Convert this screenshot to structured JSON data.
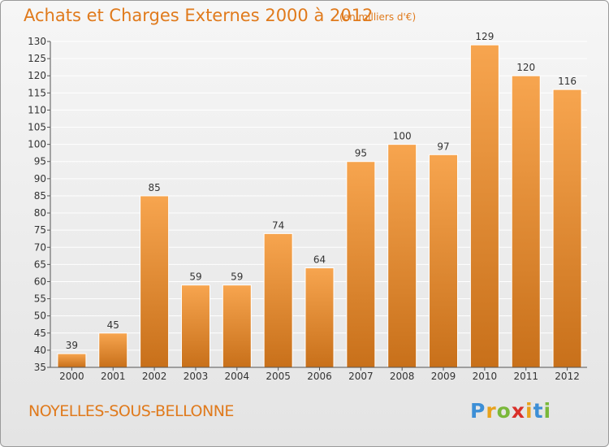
{
  "title": "Achats et Charges Externes 2000 à 2012",
  "subtitle": "(en milliers d'€)",
  "town": "NOYELLES-SOUS-BELLONNE",
  "logo": {
    "letters": [
      "P",
      "r",
      "o",
      "x",
      "i",
      "t",
      "i"
    ],
    "colors": [
      "#3d8fd6",
      "#e8a21c",
      "#7ab83a",
      "#d9302a",
      "#e8a21c",
      "#3d8fd6",
      "#7ab83a"
    ]
  },
  "colors": {
    "bar_top": "#f7a54f",
    "bar_bottom": "#c8701a",
    "accent": "#e07a1c",
    "grid": "#ffffff"
  },
  "chart_data": {
    "type": "bar",
    "categories": [
      "2000",
      "2001",
      "2002",
      "2003",
      "2004",
      "2005",
      "2006",
      "2007",
      "2008",
      "2009",
      "2010",
      "2011",
      "2012"
    ],
    "values": [
      39,
      45,
      85,
      59,
      59,
      74,
      64,
      95,
      100,
      97,
      129,
      120,
      116
    ],
    "ylim": [
      35,
      130
    ],
    "yticks": [
      35,
      40,
      45,
      50,
      55,
      60,
      65,
      70,
      75,
      80,
      85,
      90,
      95,
      100,
      105,
      110,
      115,
      120,
      125,
      130
    ],
    "grid": true,
    "xlabel": "",
    "ylabel": ""
  }
}
